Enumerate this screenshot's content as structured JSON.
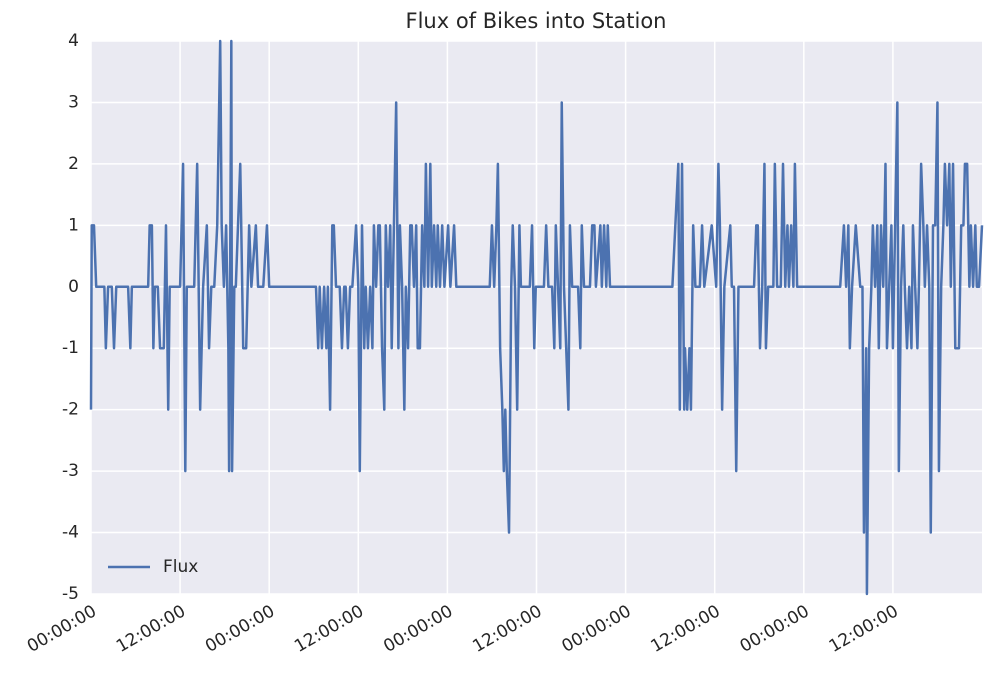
{
  "chart_data": {
    "type": "line",
    "title": "Flux of Bikes into Station",
    "x": [
      0.0,
      0.1,
      0.4,
      0.7,
      1.8,
      2.0,
      2.3,
      2.8,
      3.1,
      3.4,
      5.0,
      5.3,
      5.5,
      7.7,
      7.9,
      8.2,
      8.4,
      8.6,
      9.0,
      9.3,
      9.8,
      10.1,
      10.4,
      10.6,
      12.0,
      12.4,
      12.7,
      12.9,
      13.9,
      14.3,
      14.7,
      15.1,
      15.6,
      15.9,
      16.2,
      16.6,
      17.0,
      17.4,
      17.6,
      17.9,
      18.2,
      18.5,
      18.6,
      18.9,
      19.0,
      19.3,
      19.5,
      20.1,
      20.5,
      20.9,
      21.3,
      21.6,
      22.2,
      22.5,
      23.2,
      23.7,
      24.0,
      30.3,
      30.6,
      30.8,
      31.1,
      31.4,
      31.7,
      31.9,
      32.2,
      32.5,
      32.7,
      33.0,
      33.5,
      33.8,
      34.1,
      34.3,
      34.6,
      34.9,
      35.2,
      35.7,
      36.0,
      36.2,
      36.5,
      36.8,
      37.0,
      37.3,
      37.6,
      37.9,
      38.1,
      38.4,
      38.7,
      38.9,
      39.2,
      39.5,
      39.7,
      40.0,
      40.3,
      40.5,
      40.8,
      41.1,
      41.4,
      41.6,
      41.9,
      42.2,
      42.4,
      42.7,
      43.0,
      43.2,
      43.5,
      43.8,
      44.0,
      44.3,
      44.6,
      44.9,
      45.1,
      45.4,
      45.7,
      45.9,
      46.2,
      46.5,
      46.7,
      47.0,
      47.3,
      47.6,
      48.1,
      48.4,
      48.9,
      49.2,
      53.7,
      54.0,
      54.3,
      54.6,
      54.8,
      55.1,
      55.4,
      55.6,
      55.8,
      56.0,
      56.3,
      56.6,
      56.8,
      57.1,
      57.4,
      57.7,
      57.9,
      59.1,
      59.4,
      59.7,
      59.9,
      61.0,
      61.3,
      61.6,
      62.1,
      62.4,
      62.6,
      62.9,
      63.2,
      63.4,
      63.7,
      64.0,
      64.3,
      64.5,
      64.8,
      65.6,
      65.9,
      66.1,
      66.4,
      67.2,
      67.5,
      67.8,
      68.0,
      68.6,
      68.8,
      69.1,
      69.4,
      69.6,
      69.9,
      78.3,
      78.7,
      79.1,
      79.3,
      79.6,
      79.9,
      80.0,
      80.3,
      80.6,
      80.8,
      81.1,
      81.4,
      82.0,
      82.3,
      82.6,
      83.6,
      84.2,
      84.5,
      84.7,
      85.0,
      85.3,
      86.1,
      86.3,
      86.6,
      86.9,
      87.2,
      89.3,
      89.6,
      89.8,
      90.1,
      90.4,
      90.7,
      90.9,
      91.2,
      91.9,
      92.1,
      92.4,
      92.9,
      93.2,
      93.5,
      93.8,
      94.0,
      94.3,
      94.6,
      94.8,
      95.1,
      100.9,
      101.4,
      101.7,
      102.0,
      102.2,
      102.5,
      103.0,
      103.6,
      103.9,
      104.1,
      104.4,
      104.5,
      104.8,
      105.1,
      105.3,
      105.6,
      105.9,
      106.1,
      106.4,
      106.7,
      107.0,
      107.2,
      107.5,
      107.8,
      108.0,
      108.3,
      108.6,
      108.8,
      109.1,
      109.4,
      109.6,
      109.9,
      110.2,
      110.5,
      110.7,
      111.0,
      111.3,
      111.5,
      111.8,
      112.1,
      112.3,
      112.6,
      112.9,
      113.1,
      113.4,
      113.7,
      114.0,
      114.2,
      114.5,
      114.8,
      115.0,
      115.3,
      115.6,
      115.8,
      116.1,
      116.4,
      116.7,
      116.9,
      117.2,
      117.5,
      117.7,
      118.0,
      118.3,
      118.5,
      118.8,
      119.1,
      119.3,
      119.6,
      120.0
    ],
    "series": [
      {
        "name": "Flux",
        "color": "#4c72b0",
        "values": [
          -2,
          1,
          1,
          0,
          0,
          -1,
          0,
          0,
          -1,
          0,
          0,
          -1,
          0,
          0,
          1,
          1,
          -1,
          0,
          0,
          -1,
          -1,
          1,
          -2,
          0,
          0,
          2,
          -3,
          0,
          0,
          2,
          -2,
          0,
          1,
          -1,
          0,
          0,
          1,
          4,
          1,
          0,
          1,
          -1,
          -3,
          4,
          -3,
          0,
          0,
          2,
          -1,
          -1,
          1,
          0,
          1,
          0,
          0,
          1,
          0,
          0,
          -1,
          0,
          -1,
          0,
          -1,
          0,
          -2,
          1,
          1,
          0,
          0,
          -1,
          0,
          0,
          -1,
          0,
          0,
          1,
          0,
          -3,
          1,
          -1,
          0,
          -1,
          0,
          -1,
          1,
          0,
          1,
          1,
          -1,
          -2,
          1,
          0,
          1,
          -1,
          1,
          3,
          -1,
          1,
          0,
          -2,
          0,
          -1,
          1,
          1,
          0,
          1,
          -1,
          -1,
          1,
          0,
          2,
          0,
          2,
          0,
          1,
          0,
          1,
          0,
          1,
          0,
          1,
          0,
          1,
          0,
          0,
          1,
          0,
          1,
          2,
          -1,
          -2,
          -3,
          -2,
          -3,
          -4,
          0,
          1,
          0,
          -2,
          1,
          0,
          0,
          1,
          -1,
          0,
          0,
          1,
          0,
          0,
          -1,
          1,
          0,
          -1,
          3,
          0,
          -1,
          -2,
          1,
          0,
          0,
          -1,
          1,
          0,
          0,
          1,
          1,
          0,
          1,
          0,
          1,
          0,
          1,
          0,
          0,
          1,
          2,
          -2,
          2,
          -2,
          -1,
          -2,
          -1,
          -2,
          1,
          0,
          0,
          1,
          0,
          1,
          0,
          2,
          1,
          -2,
          0,
          1,
          0,
          0,
          -3,
          0,
          0,
          1,
          1,
          -1,
          0,
          2,
          -1,
          0,
          0,
          2,
          0,
          0,
          2,
          0,
          1,
          0,
          1,
          0,
          2,
          0,
          0,
          1,
          0,
          1,
          -1,
          0,
          1,
          0,
          0,
          -4,
          -1,
          -5,
          -1,
          0,
          1,
          0,
          1,
          -1,
          1,
          0,
          2,
          -1,
          0,
          1,
          -1,
          1,
          3,
          -3,
          0,
          1,
          0,
          -1,
          0,
          -1,
          1,
          0,
          -1,
          0,
          2,
          1,
          0,
          1,
          0,
          -4,
          1,
          1,
          3,
          -3,
          0,
          1,
          2,
          1,
          2,
          0,
          2,
          -1,
          -1,
          -1,
          1,
          1,
          2,
          2,
          0,
          1,
          0,
          1,
          0,
          0,
          1
        ]
      }
    ],
    "xlim": [
      0,
      120
    ],
    "xticks": [
      {
        "value": 0,
        "label": "00:00:00"
      },
      {
        "value": 12,
        "label": "12:00:00"
      },
      {
        "value": 24,
        "label": "00:00:00"
      },
      {
        "value": 36,
        "label": "12:00:00"
      },
      {
        "value": 48,
        "label": "00:00:00"
      },
      {
        "value": 60,
        "label": "12:00:00"
      },
      {
        "value": 72,
        "label": "00:00:00"
      },
      {
        "value": 84,
        "label": "12:00:00"
      },
      {
        "value": 96,
        "label": "00:00:00"
      },
      {
        "value": 108,
        "label": "12:00:00"
      }
    ],
    "ylim": [
      -5,
      4
    ],
    "yticks": [
      -5,
      -4,
      -3,
      -2,
      -1,
      0,
      1,
      2,
      3,
      4
    ],
    "grid": true,
    "legend": "lower left"
  }
}
